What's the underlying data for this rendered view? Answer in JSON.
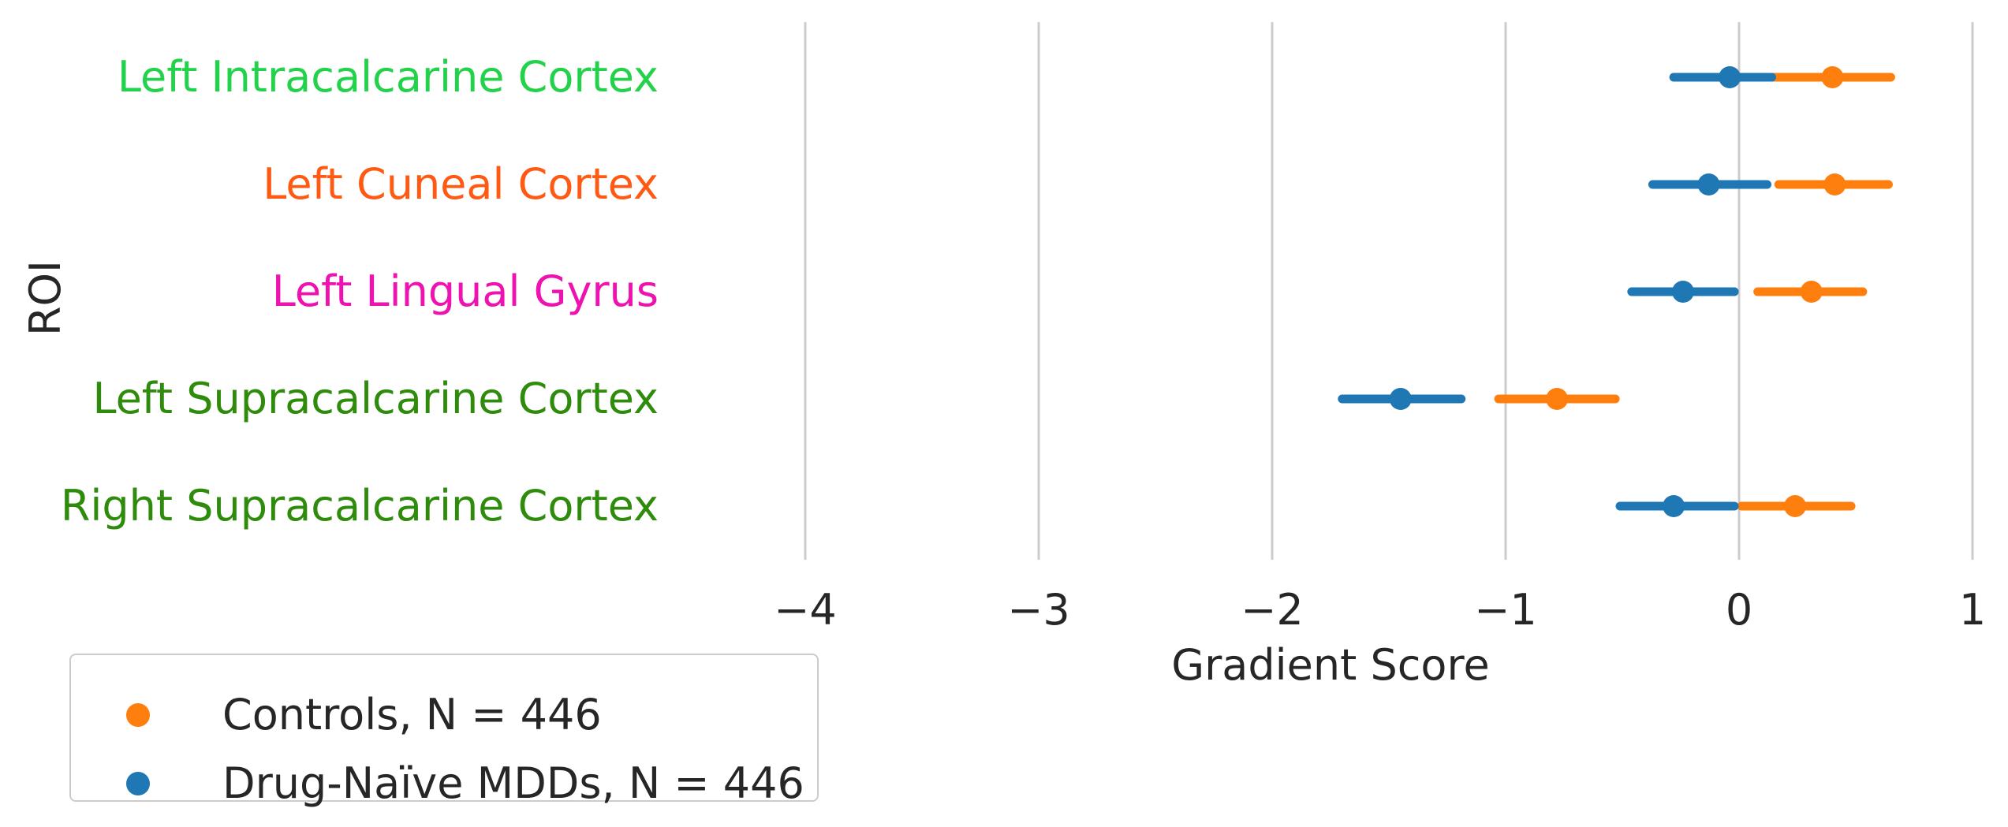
{
  "chart_data": {
    "type": "scatter",
    "subtype": "point-range",
    "xlabel": "Gradient Score",
    "ylabel": "ROI",
    "xlim": [
      -4.6,
      1.05
    ],
    "xticks": [
      -4,
      -3,
      -2,
      -1,
      0,
      1
    ],
    "xtick_labels": [
      "−4",
      "−3",
      "−2",
      "−1",
      "0",
      "1"
    ],
    "grid": "vertical",
    "legend_position": "lower-left, outside",
    "categories": [
      {
        "label": "Left Intracalcarine Cortex",
        "color": "#21d24a"
      },
      {
        "label": "Left Cuneal Cortex",
        "color": "#ff5a14"
      },
      {
        "label": "Left Lingual Gyrus",
        "color": "#ee12b0"
      },
      {
        "label": "Left Supracalcarine Cortex",
        "color": "#2e8b0b"
      },
      {
        "label": "Right Supracalcarine Cortex",
        "color": "#2e8b0b"
      }
    ],
    "series": [
      {
        "name": "Controls, N = 446",
        "color": "#ff7f0e",
        "offset": 0.0,
        "values": [
          0.4,
          0.41,
          0.31,
          -0.78,
          0.24
        ],
        "ci_low": [
          0.14,
          0.17,
          0.08,
          -1.03,
          0.01
        ],
        "ci_high": [
          0.65,
          0.64,
          0.53,
          -0.53,
          0.48
        ]
      },
      {
        "name": "Drug-Naïve MDDs, N = 446",
        "color": "#1f77b4",
        "offset": 0.0,
        "values": [
          -0.04,
          -0.13,
          -0.24,
          -1.45,
          -0.28
        ],
        "ci_low": [
          -0.28,
          -0.37,
          -0.46,
          -1.7,
          -0.51
        ],
        "ci_high": [
          0.14,
          0.12,
          -0.02,
          -1.19,
          -0.02
        ]
      }
    ]
  }
}
